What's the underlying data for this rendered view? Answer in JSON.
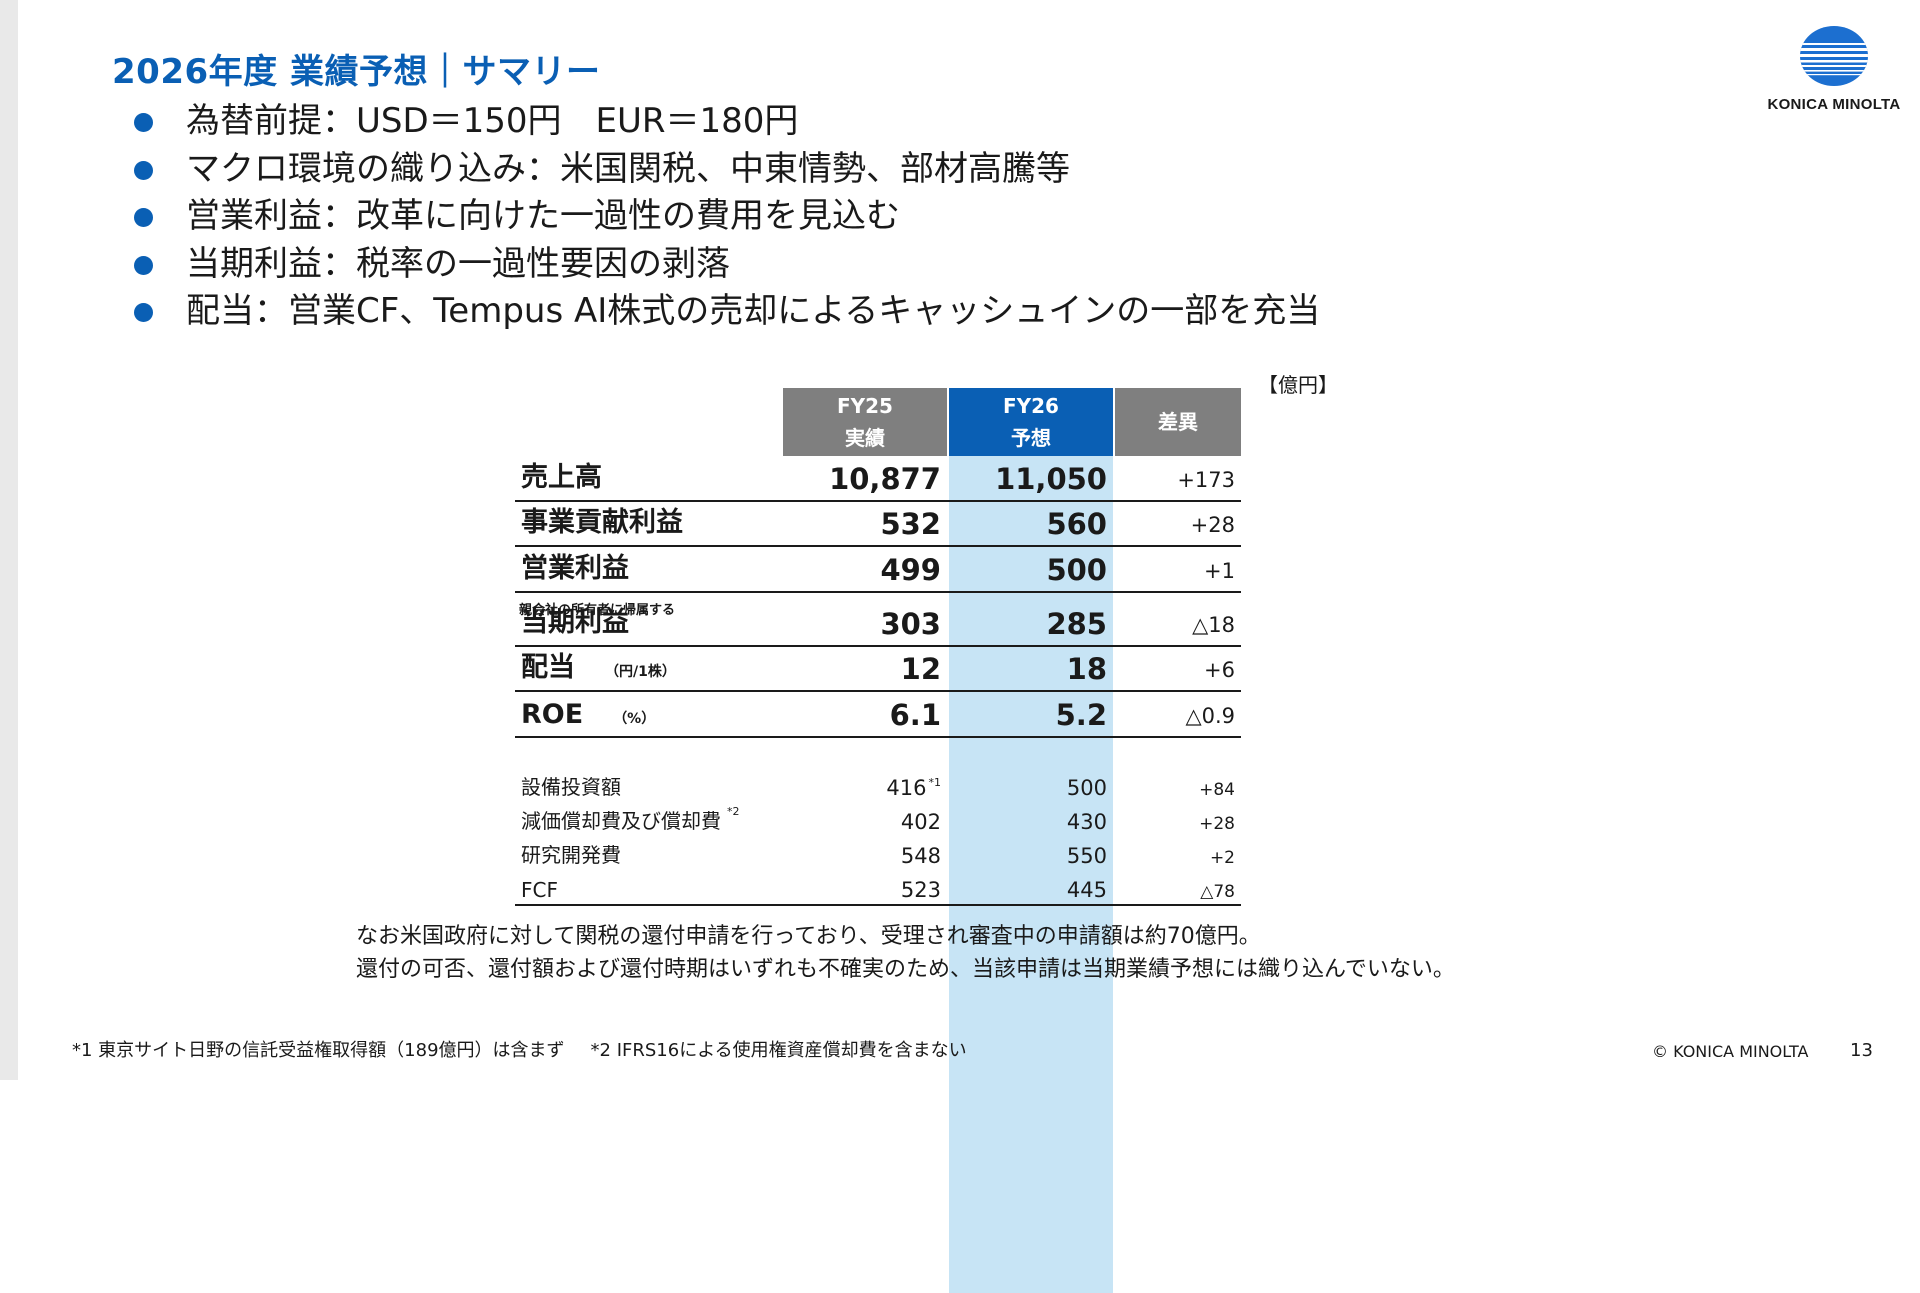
{
  "slide": {
    "title": "2026年度 業績予想｜サマリー",
    "logo_text": "KONICA MINOLTA",
    "bullets": [
      "為替前提：USD＝150円　EUR＝180円",
      "マクロ環境の織り込み：米国関税、中東情勢、部材高騰等",
      "営業利益：改革に向けた一過性の費用を見込む",
      "当期利益：税率の一過性要因の剥落",
      "配当：営業CF、Tempus AI株式の売却によるキャッシュインの一部を充当"
    ],
    "unit": "【億円】",
    "note_lines": [
      "なお米国政府に対して関税の還付申請を行っており、受理され審査中の申請額は約70億円。",
      "還付の可否、還付額および還付時期はいずれも不確実のため、当該申請は当期業績予想には織り込んでいない。"
    ],
    "footnote1": "*1 東京サイト日野の信託受益権取得額（189億円）は含まず",
    "footnote2": "*2 IFRS16による使用権資産償却費を含まない",
    "copyright": "© KONICA MINOLTA",
    "page_number": "13"
  },
  "table": {
    "headers": {
      "fy25_line1": "FY25",
      "fy25_line2": "実績",
      "fy26_line1": "FY26",
      "fy26_line2": "予想",
      "diff": "差異"
    },
    "rows": [
      {
        "label": "売上高",
        "fy25": "10,877",
        "fy26": "11,050",
        "diff": "+173"
      },
      {
        "label": "事業貢献利益",
        "fy25": "532",
        "fy26": "560",
        "diff": "+28"
      },
      {
        "label": "営業利益",
        "fy25": "499",
        "fy26": "500",
        "diff": "+1"
      },
      {
        "pre_label": "親会社の所有者に帰属する",
        "label": "当期利益",
        "fy25": "303",
        "fy26": "285",
        "diff": "△18"
      },
      {
        "label": "配当",
        "sub": "（円/1株）",
        "fy25": "12",
        "fy26": "18",
        "diff": "+6"
      },
      {
        "label": "ROE",
        "sub": "（%）",
        "fy25": "6.1",
        "fy26": "5.2",
        "diff": "△0.9"
      }
    ],
    "minor_rows": [
      {
        "label": "設備投資額",
        "fy25": "416",
        "fy25_note": "*1",
        "fy26": "500",
        "diff": "+84"
      },
      {
        "label": "減価償却費及び償却費",
        "label_note": "*2",
        "fy26": "430",
        "fy25": "402",
        "diff": "+28"
      },
      {
        "label": "研究開発費",
        "fy25": "548",
        "fy26": "550",
        "diff": "+2"
      },
      {
        "label": "FCF",
        "fy25": "523",
        "fy26": "445",
        "diff": "△78"
      }
    ]
  }
}
